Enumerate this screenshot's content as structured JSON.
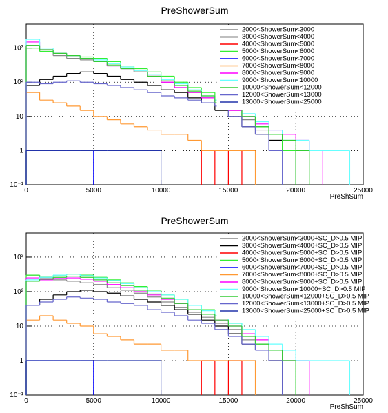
{
  "chart_data": [
    {
      "type": "histogram",
      "title": "PreShowerSum",
      "x_label": "PreShSum",
      "xlim": [
        0,
        25000
      ],
      "xticks": [
        0,
        5000,
        10000,
        15000,
        20000,
        25000
      ],
      "ylim": [
        0.1,
        5000
      ],
      "log_y": true,
      "grid": true,
      "legend": "upper right",
      "yticks": [
        {
          "value": 0.1,
          "label": "10⁻¹"
        },
        1,
        10,
        {
          "value": 100,
          "label": "10²"
        },
        {
          "value": 1000,
          "label": "10³"
        }
      ],
      "bins": [
        0,
        1000,
        2000,
        3000,
        4000,
        5000,
        6000,
        7000,
        8000,
        9000,
        10000,
        11000,
        12000,
        13000,
        14000,
        15000,
        16000,
        17000,
        18000,
        19000,
        20000,
        21000,
        22000,
        23000,
        24000,
        25000
      ],
      "series": [
        {
          "name": "2000<ShowerSum<3000",
          "color": "#888888",
          "values": [
            1200,
            800,
            600,
            500,
            450,
            400,
            300,
            250,
            200,
            150,
            100,
            70,
            50,
            35,
            25,
            15,
            8,
            4,
            2,
            1,
            null,
            null,
            null,
            null,
            null
          ]
        },
        {
          "name": "3000<ShowerSum<4000",
          "color": "#000000",
          "values": [
            80,
            120,
            150,
            180,
            200,
            180,
            150,
            120,
            100,
            80,
            60,
            50,
            35,
            25,
            15,
            10,
            5,
            3,
            2,
            1,
            null,
            null,
            null,
            null,
            null
          ]
        },
        {
          "name": "4000<ShowerSum<5000",
          "color": "#ff0000",
          "values": [
            null,
            null,
            null,
            null,
            null,
            null,
            null,
            null,
            null,
            null,
            null,
            null,
            null,
            1,
            null,
            1,
            null,
            null,
            null,
            null,
            null,
            null,
            null,
            null,
            null
          ]
        },
        {
          "name": "5000<ShowerSum<6000",
          "color": "#33ee33",
          "values": [
            1000,
            800,
            700,
            600,
            550,
            500,
            400,
            300,
            250,
            200,
            150,
            100,
            70,
            50,
            30,
            20,
            10,
            5,
            3,
            1,
            null,
            null,
            null,
            null,
            null
          ]
        },
        {
          "name": "6000<ShowerSum<7000",
          "color": "#0000ff",
          "values": [
            1,
            1,
            1,
            1,
            1,
            null,
            null,
            null,
            null,
            null,
            null,
            null,
            null,
            null,
            null,
            null,
            null,
            null,
            null,
            null,
            null,
            null,
            null,
            null,
            null
          ]
        },
        {
          "name": "7000<ShowerSum<8000",
          "color": "#ff9933",
          "values": [
            50,
            30,
            25,
            20,
            15,
            10,
            8,
            6,
            5,
            4,
            3,
            3,
            2,
            1,
            1,
            1,
            1,
            null,
            null,
            null,
            null,
            null,
            null,
            null,
            null
          ]
        },
        {
          "name": "8000<ShowerSum<9000",
          "color": "#ff00ff",
          "values": [
            1500,
            900,
            700,
            600,
            500,
            400,
            300,
            250,
            200,
            150,
            100,
            70,
            50,
            35,
            25,
            15,
            10,
            6,
            4,
            3,
            2,
            1,
            null,
            null,
            null
          ]
        },
        {
          "name": "9000<ShowerSum<10000",
          "color": "#66ffff",
          "values": [
            1800,
            1000,
            700,
            600,
            500,
            450,
            350,
            280,
            220,
            170,
            120,
            90,
            60,
            40,
            30,
            20,
            12,
            7,
            4,
            2,
            2,
            1,
            1,
            1,
            null
          ]
        },
        {
          "name": "10000<ShowerSum<12000",
          "color": "#33cc33",
          "values": [
            1200,
            900,
            700,
            600,
            500,
            400,
            320,
            250,
            200,
            150,
            110,
            80,
            55,
            40,
            25,
            18,
            10,
            5,
            3,
            2,
            1,
            null,
            null,
            null,
            null
          ]
        },
        {
          "name": "12000<ShowerSum<13000",
          "color": "#6666cc",
          "values": [
            100,
            90,
            100,
            110,
            100,
            90,
            80,
            70,
            60,
            50,
            40,
            35,
            30,
            25,
            20,
            10,
            5,
            3,
            1,
            null,
            null,
            null,
            null,
            null,
            null
          ]
        },
        {
          "name": "13000<ShowerSum<25000",
          "color": "#2233aa",
          "values": [
            1,
            1,
            1,
            1,
            1,
            1,
            1,
            1,
            1,
            1,
            null,
            null,
            null,
            null,
            null,
            null,
            null,
            null,
            null,
            null,
            null,
            null,
            null,
            null,
            null
          ]
        }
      ]
    },
    {
      "type": "histogram",
      "title": "PreShowerSum",
      "x_label": "PreShSum",
      "xlim": [
        0,
        25000
      ],
      "xticks": [
        0,
        5000,
        10000,
        15000,
        20000,
        25000
      ],
      "ylim": [
        0.1,
        5000
      ],
      "log_y": true,
      "grid": true,
      "legend": "upper right",
      "yticks": [
        {
          "value": 0.1,
          "label": "10⁻¹"
        },
        1,
        10,
        {
          "value": 100,
          "label": "10²"
        },
        {
          "value": 1000,
          "label": "10³"
        }
      ],
      "bins": [
        0,
        1000,
        2000,
        3000,
        4000,
        5000,
        6000,
        7000,
        8000,
        9000,
        10000,
        11000,
        12000,
        13000,
        14000,
        15000,
        16000,
        17000,
        18000,
        19000,
        20000,
        21000,
        22000,
        23000,
        24000,
        25000
      ],
      "series": [
        {
          "name": "2000<ShowerSum<3000+SC_D>0.5 MIP",
          "color": "#888888",
          "values": [
            300,
            250,
            220,
            200,
            180,
            160,
            130,
            110,
            90,
            70,
            50,
            35,
            25,
            18,
            12,
            8,
            4,
            2,
            1,
            null,
            null,
            null,
            null,
            null,
            null
          ]
        },
        {
          "name": "3000<ShowerSum<4000+SC_D>0.5 MIP",
          "color": "#000000",
          "values": [
            40,
            60,
            80,
            100,
            110,
            100,
            90,
            75,
            60,
            50,
            40,
            30,
            22,
            15,
            10,
            6,
            3,
            2,
            1,
            null,
            null,
            null,
            null,
            null,
            null
          ]
        },
        {
          "name": "4000<ShowerSum<5000+SC_D>0.5 MIP",
          "color": "#ff0000",
          "values": [
            null,
            null,
            null,
            null,
            null,
            null,
            null,
            null,
            null,
            null,
            null,
            null,
            null,
            1,
            null,
            1,
            null,
            null,
            null,
            null,
            null,
            null,
            null,
            null,
            null
          ]
        },
        {
          "name": "5000<ShowerSum<6000+SC_D>0.5 MIP",
          "color": "#33ee33",
          "values": [
            300,
            280,
            300,
            320,
            300,
            260,
            220,
            180,
            140,
            110,
            80,
            60,
            40,
            30,
            20,
            12,
            6,
            3,
            2,
            1,
            null,
            null,
            null,
            null,
            null
          ]
        },
        {
          "name": "6000<ShowerSum<7000+SC_D>0.5 MIP",
          "color": "#0000ff",
          "values": [
            1,
            1,
            1,
            1,
            1,
            null,
            null,
            null,
            null,
            null,
            null,
            null,
            null,
            null,
            null,
            null,
            null,
            null,
            null,
            null,
            null,
            null,
            null,
            null,
            null
          ]
        },
        {
          "name": "7000<ShowerSum<8000+SC_D>0.5 MIP",
          "color": "#ff9933",
          "values": [
            15,
            20,
            15,
            12,
            10,
            6,
            5,
            4,
            3,
            3,
            2,
            2,
            1,
            1,
            1,
            1,
            1,
            null,
            null,
            null,
            null,
            null,
            null,
            null,
            null
          ]
        },
        {
          "name": "8000<ShowerSum<9000+SC_D>0.5 MIP",
          "color": "#ff00ff",
          "values": [
            250,
            220,
            240,
            250,
            230,
            200,
            160,
            130,
            100,
            80,
            60,
            45,
            30,
            22,
            15,
            10,
            6,
            4,
            2,
            1,
            1,
            null,
            null,
            null,
            null
          ]
        },
        {
          "name": "9000<ShowerSum<10000+SC_D>0.5 MIP",
          "color": "#66ffff",
          "values": [
            220,
            260,
            300,
            320,
            290,
            250,
            210,
            170,
            130,
            100,
            80,
            60,
            40,
            28,
            20,
            12,
            8,
            5,
            3,
            2,
            1,
            1,
            1,
            1,
            null
          ]
        },
        {
          "name": "10000<ShowerSum<12000+SC_D>0.5 MIP",
          "color": "#33cc33",
          "values": [
            200,
            230,
            260,
            280,
            260,
            220,
            180,
            150,
            110,
            85,
            65,
            45,
            30,
            22,
            15,
            10,
            5,
            3,
            2,
            1,
            null,
            null,
            null,
            null,
            null
          ]
        },
        {
          "name": "12000<ShowerSum<13000+SC_D>0.5 MIP",
          "color": "#6666cc",
          "values": [
            40,
            50,
            60,
            70,
            65,
            60,
            50,
            45,
            40,
            30,
            25,
            20,
            15,
            12,
            8,
            5,
            3,
            2,
            1,
            null,
            null,
            null,
            null,
            null,
            null
          ]
        },
        {
          "name": "13000<ShowerSum<25000+SC_D>0.5 MIP",
          "color": "#2233aa",
          "values": [
            1,
            1,
            1,
            1,
            1,
            1,
            1,
            1,
            1,
            1,
            null,
            null,
            null,
            null,
            null,
            null,
            null,
            null,
            null,
            null,
            null,
            null,
            null,
            null,
            null
          ]
        }
      ]
    }
  ]
}
